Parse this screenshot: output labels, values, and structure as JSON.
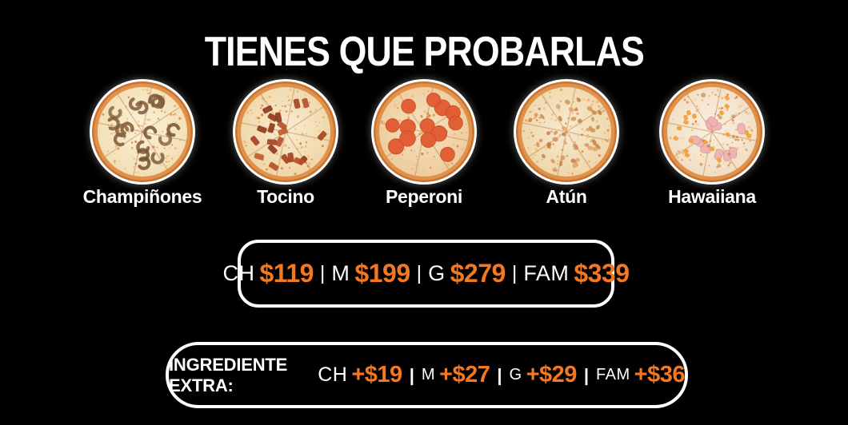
{
  "page": {
    "background": "#000000",
    "accent_orange": "#F47820",
    "text_white": "#FFFFFF"
  },
  "header": {
    "title": "TIENES QUE PROBARLAS"
  },
  "pizzas": [
    {
      "name": "Champiñones",
      "topping": "mushroom"
    },
    {
      "name": "Tocino",
      "topping": "bacon"
    },
    {
      "name": "Peperoni",
      "topping": "pepperoni"
    },
    {
      "name": "Atún",
      "topping": "tuna"
    },
    {
      "name": "Hawaiiana",
      "topping": "ham-pineapple"
    }
  ],
  "price_bar": {
    "separator": "|",
    "items": [
      {
        "size": "CH",
        "price": "$119"
      },
      {
        "size": "M",
        "price": "$199"
      },
      {
        "size": "G",
        "price": "$279"
      },
      {
        "size": "FAM",
        "price": "$339"
      }
    ]
  },
  "extra_bar": {
    "label": "INGREDIENTE EXTRA:",
    "separator": "|",
    "items": [
      {
        "size": "CH",
        "price": "+$19"
      },
      {
        "size": "M",
        "price": "+$27"
      },
      {
        "size": "G",
        "price": "+$29"
      },
      {
        "size": "FAM",
        "price": "+$36"
      }
    ]
  }
}
